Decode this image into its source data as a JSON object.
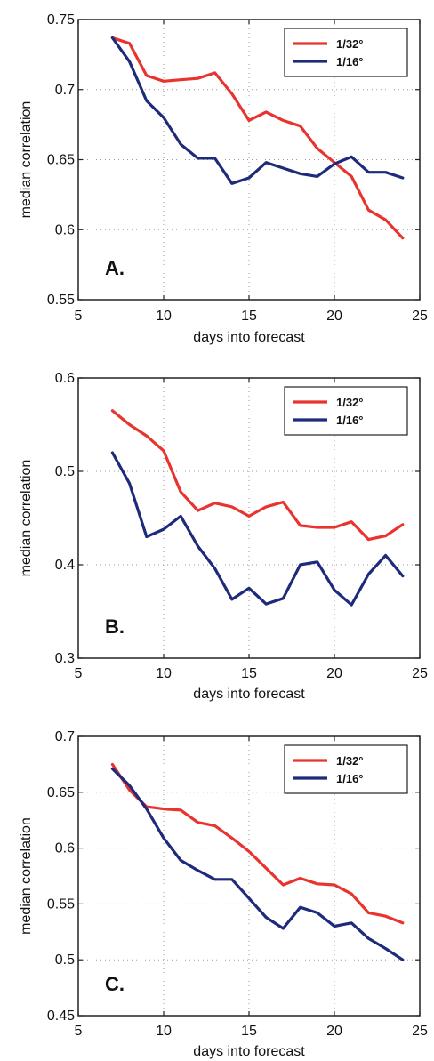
{
  "chart_data": [
    {
      "type": "line",
      "panel_label": "A.",
      "xlabel": "days into forecast",
      "ylabel": "median correlation",
      "xlim": [
        5,
        25
      ],
      "ylim": [
        0.55,
        0.75
      ],
      "xticks": [
        5,
        10,
        15,
        20,
        25
      ],
      "yticks": [
        0.55,
        0.6,
        0.65,
        0.7,
        0.75
      ],
      "ytick_labels": [
        "0.55",
        "0.6",
        "0.65",
        "0.7",
        "0.75"
      ],
      "grid": true,
      "legend_position": "top-right",
      "x": [
        7,
        8,
        9,
        10,
        11,
        12,
        13,
        14,
        15,
        16,
        17,
        18,
        19,
        20,
        21,
        22,
        23,
        24
      ],
      "series": [
        {
          "name": "1/32°",
          "color": "#e8332e",
          "values": [
            0.737,
            0.733,
            0.71,
            0.706,
            0.707,
            0.708,
            0.712,
            0.697,
            0.678,
            0.684,
            0.678,
            0.674,
            0.658,
            0.648,
            0.638,
            0.614,
            0.607,
            0.594
          ]
        },
        {
          "name": "1/16°",
          "color": "#1e2a7a",
          "values": [
            0.737,
            0.72,
            0.692,
            0.68,
            0.661,
            0.651,
            0.651,
            0.633,
            0.637,
            0.648,
            0.644,
            0.64,
            0.638,
            0.647,
            0.652,
            0.641,
            0.641,
            0.637
          ]
        }
      ]
    },
    {
      "type": "line",
      "panel_label": "B.",
      "xlabel": "days into forecast",
      "ylabel": "median correlation",
      "xlim": [
        5,
        25
      ],
      "ylim": [
        0.3,
        0.6
      ],
      "xticks": [
        5,
        10,
        15,
        20,
        25
      ],
      "yticks": [
        0.3,
        0.4,
        0.5,
        0.6
      ],
      "ytick_labels": [
        "0.3",
        "0.4",
        "0.5",
        "0.6"
      ],
      "grid": true,
      "legend_position": "top-right",
      "x": [
        7,
        8,
        9,
        10,
        11,
        12,
        13,
        14,
        15,
        16,
        17,
        18,
        19,
        20,
        21,
        22,
        23,
        24
      ],
      "series": [
        {
          "name": "1/32°",
          "color": "#e8332e",
          "values": [
            0.565,
            0.55,
            0.538,
            0.522,
            0.478,
            0.458,
            0.466,
            0.462,
            0.452,
            0.462,
            0.467,
            0.442,
            0.44,
            0.44,
            0.446,
            0.427,
            0.431,
            0.443
          ]
        },
        {
          "name": "1/16°",
          "color": "#1e2a7a",
          "values": [
            0.52,
            0.487,
            0.43,
            0.438,
            0.452,
            0.42,
            0.396,
            0.363,
            0.375,
            0.358,
            0.364,
            0.4,
            0.403,
            0.373,
            0.357,
            0.39,
            0.41,
            0.388
          ]
        }
      ]
    },
    {
      "type": "line",
      "panel_label": "C.",
      "xlabel": "days into forecast",
      "ylabel": "median correlation",
      "xlim": [
        5,
        25
      ],
      "ylim": [
        0.45,
        0.7
      ],
      "xticks": [
        5,
        10,
        15,
        20,
        25
      ],
      "yticks": [
        0.45,
        0.5,
        0.55,
        0.6,
        0.65,
        0.7
      ],
      "ytick_labels": [
        "0.45",
        "0.5",
        "0.55",
        "0.6",
        "0.65",
        "0.7"
      ],
      "grid": true,
      "legend_position": "top-right",
      "x": [
        7,
        8,
        9,
        10,
        11,
        12,
        13,
        14,
        15,
        16,
        17,
        18,
        19,
        20,
        21,
        22,
        23,
        24
      ],
      "series": [
        {
          "name": "1/32°",
          "color": "#e8332e",
          "values": [
            0.675,
            0.652,
            0.637,
            0.635,
            0.634,
            0.623,
            0.62,
            0.609,
            0.597,
            0.582,
            0.567,
            0.573,
            0.568,
            0.567,
            0.559,
            0.542,
            0.539,
            0.533
          ]
        },
        {
          "name": "1/16°",
          "color": "#1e2a7a",
          "values": [
            0.671,
            0.656,
            0.635,
            0.609,
            0.589,
            0.58,
            0.572,
            0.572,
            0.555,
            0.538,
            0.528,
            0.547,
            0.542,
            0.53,
            0.533,
            0.519,
            0.51,
            0.5
          ]
        }
      ]
    }
  ]
}
